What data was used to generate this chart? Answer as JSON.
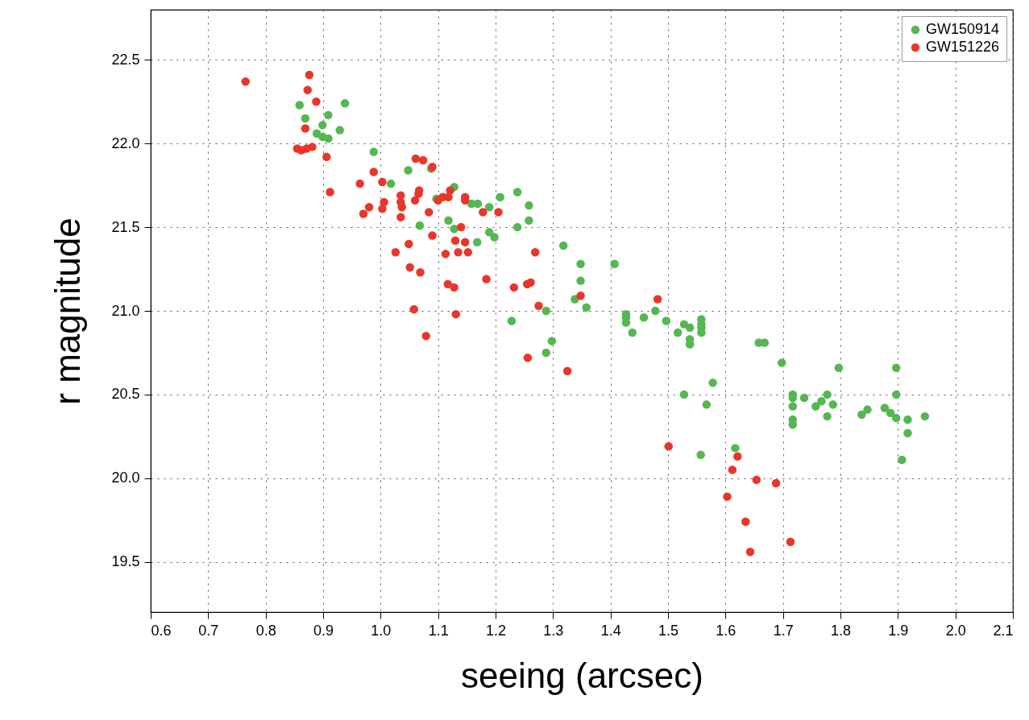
{
  "chart_data": {
    "type": "scatter",
    "xlabel": "seeing (arcsec)",
    "ylabel": "r magnitude",
    "xlim": [
      0.6,
      2.1
    ],
    "ylim": [
      19.2,
      22.8
    ],
    "xticks": [
      0.6,
      0.7,
      0.8,
      0.9,
      {
        "value": 1.0,
        "label": "1.0"
      },
      1.1,
      1.2,
      1.3,
      1.4,
      1.5,
      1.6,
      1.7,
      1.8,
      1.9,
      {
        "value": 2.0,
        "label": "2.0"
      },
      2.1
    ],
    "yticks": [
      19.5,
      {
        "value": 20.0,
        "label": "20.0"
      },
      20.5,
      {
        "value": 21.0,
        "label": "21.0"
      },
      21.5,
      {
        "value": 22.0,
        "label": "22.0"
      },
      22.5
    ],
    "grid": true,
    "legend": "top right",
    "marker": "circle",
    "series": [
      {
        "name": "GW150914",
        "color": "#55b752",
        "x": [
          0.859,
          0.938,
          0.909,
          0.869,
          0.899,
          0.929,
          0.889,
          0.899,
          0.909,
          0.988,
          1.048,
          1.088,
          1.018,
          1.128,
          1.097,
          1.118,
          1.068,
          1.128,
          1.158,
          1.169,
          1.189,
          1.208,
          1.238,
          1.258,
          1.258,
          1.238,
          1.189,
          1.198,
          1.168,
          1.318,
          1.348,
          1.407,
          1.348,
          1.338,
          1.358,
          1.288,
          1.228,
          1.298,
          1.288,
          1.427,
          1.427,
          1.427,
          1.438,
          1.458,
          1.478,
          1.497,
          1.528,
          1.538,
          1.517,
          1.538,
          1.538,
          1.558,
          1.558,
          1.558,
          1.558,
          1.658,
          1.668,
          1.698,
          1.578,
          1.528,
          1.567,
          1.797,
          1.897,
          1.717,
          1.717,
          1.717,
          1.717,
          1.717,
          1.737,
          1.757,
          1.767,
          1.777,
          1.787,
          1.777,
          1.837,
          1.847,
          1.877,
          1.887,
          1.897,
          1.897,
          1.917,
          1.917,
          1.947,
          1.907,
          1.557,
          1.617
        ],
        "values": [
          22.23,
          22.24,
          22.17,
          22.15,
          22.11,
          22.08,
          22.06,
          22.04,
          22.03,
          21.95,
          21.84,
          21.85,
          21.76,
          21.74,
          21.67,
          21.54,
          21.51,
          21.49,
          21.64,
          21.64,
          21.62,
          21.68,
          21.71,
          21.63,
          21.54,
          21.5,
          21.47,
          21.44,
          21.41,
          21.39,
          21.28,
          21.28,
          21.18,
          21.07,
          21.02,
          21.0,
          20.94,
          20.82,
          20.75,
          20.98,
          20.96,
          20.93,
          20.87,
          20.96,
          21.0,
          20.94,
          20.92,
          20.9,
          20.87,
          20.83,
          20.8,
          20.95,
          20.92,
          20.9,
          20.87,
          20.81,
          20.81,
          20.69,
          20.57,
          20.5,
          20.44,
          20.66,
          20.66,
          20.5,
          20.48,
          20.43,
          20.35,
          20.32,
          20.48,
          20.43,
          20.46,
          20.5,
          20.44,
          20.37,
          20.38,
          20.41,
          20.42,
          20.39,
          20.36,
          20.5,
          20.35,
          20.27,
          20.37,
          20.11,
          20.14,
          20.18
        ]
      },
      {
        "name": "GW151226",
        "color": "#e8372a",
        "x": [
          0.765,
          0.876,
          0.873,
          0.888,
          0.869,
          0.855,
          0.862,
          0.871,
          0.881,
          0.906,
          0.912,
          0.988,
          0.964,
          1.003,
          1.061,
          1.074,
          1.09,
          0.98,
          0.97,
          1.006,
          1.003,
          1.035,
          1.035,
          1.037,
          1.035,
          1.067,
          1.066,
          1.06,
          1.084,
          1.1,
          1.108,
          1.118,
          1.121,
          1.147,
          1.147,
          1.14,
          1.09,
          1.049,
          1.026,
          1.13,
          1.147,
          1.152,
          1.113,
          1.135,
          1.051,
          1.069,
          1.117,
          1.128,
          1.058,
          1.131,
          1.079,
          1.178,
          1.205,
          1.269,
          1.184,
          1.232,
          1.255,
          1.261,
          1.275,
          1.348,
          1.256,
          1.325,
          1.482,
          1.501,
          1.621,
          1.612,
          1.654,
          1.688,
          1.603,
          1.635,
          1.643,
          1.713
        ],
        "values": [
          22.37,
          22.41,
          22.32,
          22.25,
          22.09,
          21.97,
          21.96,
          21.97,
          21.98,
          21.92,
          21.71,
          21.83,
          21.76,
          21.77,
          21.91,
          21.9,
          21.86,
          21.62,
          21.58,
          21.65,
          21.61,
          21.69,
          21.65,
          21.62,
          21.56,
          21.72,
          21.7,
          21.66,
          21.59,
          21.66,
          21.68,
          21.68,
          21.72,
          21.68,
          21.66,
          21.5,
          21.45,
          21.4,
          21.35,
          21.42,
          21.41,
          21.35,
          21.34,
          21.35,
          21.26,
          21.23,
          21.16,
          21.14,
          21.01,
          20.98,
          20.85,
          21.59,
          21.59,
          21.35,
          21.19,
          21.14,
          21.16,
          21.17,
          21.03,
          21.09,
          20.72,
          20.64,
          21.07,
          20.19,
          20.13,
          20.05,
          19.99,
          19.97,
          19.89,
          19.74,
          19.56,
          19.62
        ]
      }
    ]
  }
}
